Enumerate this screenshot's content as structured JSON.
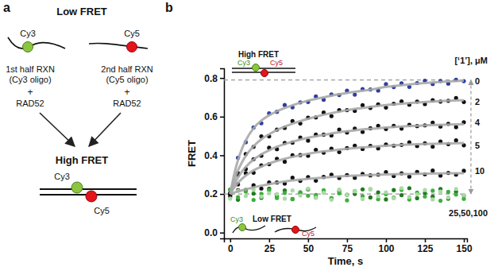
{
  "diagram": {
    "panel_label": "a",
    "top_title": "Low FRET",
    "bottom_title": "High FRET",
    "left": {
      "dye": "Cy3",
      "lines": [
        "1st half RXN",
        "(Cy3 oligo)"
      ],
      "plus": "+",
      "protein": "RAD52"
    },
    "right": {
      "dye": "Cy5",
      "lines": [
        "2nd half RXN",
        "(Cy5 oligo)"
      ],
      "plus": "+",
      "protein": "RAD52"
    },
    "duplex": {
      "dye_left": "Cy3",
      "dye_right": "Cy5"
    }
  },
  "chart_data": {
    "type": "scatter",
    "x_label": "Time, s",
    "y_label": "FRET",
    "xlim": [
      -4,
      152
    ],
    "ylim": [
      -0.03,
      0.85
    ],
    "xticks": [
      0,
      25,
      50,
      75,
      100,
      125,
      150
    ],
    "yticks": [
      {
        "value": 0,
        "label": "0.0"
      },
      {
        "value": 0.2,
        "label": "0.2"
      },
      {
        "value": 0.4,
        "label": "0.4"
      },
      {
        "value": 0.6,
        "label": "0.6"
      },
      {
        "value": 0.8,
        "label": "0.8"
      }
    ],
    "grid": false,
    "reference_lines": [
      0.79,
      0.2
    ],
    "annotations": {
      "panel_label": "b",
      "concentration_header": "[‘1’], μM",
      "inhibited_label": "25,50,100",
      "high_fret": {
        "title": "High FRET",
        "dye_left": "Cy3",
        "dye_right": "Cy5"
      },
      "low_fret": {
        "title": "Low FRET",
        "dye_left": "Cy3",
        "dye_right": "Cy5"
      }
    },
    "x": [
      0,
      5,
      10,
      15,
      20,
      25,
      30,
      35,
      40,
      45,
      50,
      55,
      60,
      65,
      70,
      75,
      80,
      85,
      90,
      95,
      100,
      105,
      110,
      115,
      120,
      125,
      130,
      135,
      140,
      145,
      150
    ],
    "series": [
      {
        "name": "0",
        "type": "scatter",
        "marker": "circle",
        "color": "#2d3fa0",
        "values": [
          0.2,
          0.387,
          0.468,
          0.544,
          0.566,
          0.617,
          0.625,
          0.66,
          0.648,
          0.674,
          0.676,
          0.705,
          0.688,
          0.715,
          0.712,
          0.734,
          0.714,
          0.743,
          0.741,
          0.735,
          0.768,
          0.753,
          0.772,
          0.754,
          0.774,
          0.786,
          0.769,
          0.785,
          0.771,
          0.791,
          0.784
        ]
      },
      {
        "name": "2",
        "type": "scatter",
        "marker": "circle",
        "color": "#111111",
        "values": [
          0.204,
          0.308,
          0.407,
          0.444,
          0.498,
          0.498,
          0.533,
          0.542,
          0.577,
          0.565,
          0.595,
          0.596,
          0.621,
          0.603,
          0.634,
          0.634,
          0.63,
          0.659,
          0.645,
          0.664,
          0.647,
          0.667,
          0.679,
          0.662,
          0.678,
          0.665,
          0.685,
          0.678,
          0.682,
          0.696,
          0.676
        ]
      },
      {
        "name": "4",
        "type": "scatter",
        "marker": "circle",
        "color": "#111111",
        "values": [
          0.197,
          0.3,
          0.329,
          0.38,
          0.398,
          0.439,
          0.432,
          0.464,
          0.466,
          0.492,
          0.476,
          0.507,
          0.507,
          0.503,
          0.533,
          0.518,
          0.538,
          0.521,
          0.54,
          0.553,
          0.536,
          0.552,
          0.538,
          0.558,
          0.551,
          0.555,
          0.569,
          0.549,
          0.563,
          0.546,
          0.571
        ]
      },
      {
        "name": "5",
        "type": "scatter",
        "marker": "circle",
        "color": "#111111",
        "values": [
          0.202,
          0.25,
          0.308,
          0.31,
          0.348,
          0.354,
          0.382,
          0.367,
          0.4,
          0.401,
          0.398,
          0.428,
          0.414,
          0.434,
          0.417,
          0.437,
          0.45,
          0.433,
          0.449,
          0.436,
          0.456,
          0.45,
          0.454,
          0.467,
          0.448,
          0.462,
          0.445,
          0.471,
          0.458,
          0.477,
          0.452
        ]
      },
      {
        "name": "10",
        "type": "scatter",
        "marker": "circle",
        "color": "#111111",
        "values": [
          0.188,
          0.219,
          0.22,
          0.245,
          0.228,
          0.259,
          0.259,
          0.254,
          0.284,
          0.268,
          0.287,
          0.269,
          0.288,
          0.3,
          0.283,
          0.298,
          0.284,
          0.304,
          0.296,
          0.3,
          0.313,
          0.293,
          0.307,
          0.29,
          0.314,
          0.302,
          0.321,
          0.295,
          0.309,
          0.3,
          0.32
        ]
      },
      {
        "type": "scatter",
        "marker": "circle",
        "color": "#1f7a1f",
        "values": [
          0.222,
          0.17,
          0.216,
          0.202,
          0.18,
          0.228,
          0.188,
          0.218,
          0.174,
          0.206,
          0.224,
          0.184,
          0.21,
          0.178,
          0.214,
          0.196,
          0.2,
          0.224,
          0.182,
          0.208,
          0.172,
          0.22,
          0.194,
          0.23,
          0.178,
          0.204,
          0.186,
          0.226,
          0.176,
          0.212,
          0.192
        ]
      },
      {
        "type": "scatter",
        "marker": "circle",
        "color": "#3fae3f",
        "values": [
          0.223,
          0.183,
          0.213,
          0.169,
          0.201,
          0.219,
          0.179,
          0.205,
          0.173,
          0.209,
          0.191,
          0.195,
          0.219,
          0.177,
          0.203,
          0.167,
          0.215,
          0.189,
          0.225,
          0.173,
          0.199,
          0.181,
          0.221,
          0.171,
          0.207,
          0.187,
          0.217,
          0.165,
          0.211,
          0.197,
          0.175
        ]
      },
      {
        "type": "scatter",
        "marker": "circle",
        "color": "#a9dba2",
        "values": [
          0.176,
          0.216,
          0.19,
          0.222,
          0.186,
          0.204,
          0.2,
          0.176,
          0.218,
          0.192,
          0.228,
          0.18,
          0.206,
          0.17,
          0.222,
          0.196,
          0.214,
          0.174,
          0.224,
          0.188,
          0.208,
          0.178,
          0.23,
          0.184,
          0.198,
          0.22,
          0.172,
          0.212,
          0.182,
          0.226,
          0.194
        ]
      },
      {
        "type": "line",
        "line_style": "solid",
        "color": "#a8a8a8",
        "x": [
          0,
          2.5,
          5,
          7.5,
          10,
          15,
          20,
          25,
          30,
          40,
          50,
          60,
          70,
          80,
          90,
          100,
          110,
          120,
          130,
          140,
          150
        ],
        "values": [
          0.2,
          0.3,
          0.375,
          0.433,
          0.477,
          0.54,
          0.58,
          0.607,
          0.628,
          0.659,
          0.683,
          0.7,
          0.716,
          0.729,
          0.74,
          0.754,
          0.763,
          0.771,
          0.777,
          0.782,
          0.786
        ]
      },
      {
        "type": "line",
        "line_style": "solid",
        "color": "#a8a8a8",
        "x": [
          0,
          2.5,
          5,
          7.5,
          10,
          15,
          20,
          25,
          30,
          40,
          50,
          60,
          70,
          80,
          90,
          100,
          110,
          120,
          130,
          140,
          150
        ],
        "values": [
          0.2,
          0.268,
          0.322,
          0.363,
          0.397,
          0.447,
          0.483,
          0.509,
          0.531,
          0.564,
          0.589,
          0.61,
          0.626,
          0.64,
          0.651,
          0.66,
          0.667,
          0.673,
          0.678,
          0.682,
          0.685
        ]
      },
      {
        "type": "line",
        "line_style": "solid",
        "color": "#a8a8a8",
        "x": [
          0,
          2.5,
          5,
          7.5,
          10,
          15,
          20,
          25,
          30,
          40,
          50,
          60,
          70,
          80,
          90,
          100,
          110,
          120,
          130,
          140,
          150
        ],
        "values": [
          0.2,
          0.248,
          0.285,
          0.316,
          0.34,
          0.378,
          0.405,
          0.426,
          0.444,
          0.47,
          0.491,
          0.506,
          0.519,
          0.529,
          0.537,
          0.544,
          0.549,
          0.553,
          0.557,
          0.559,
          0.561
        ]
      },
      {
        "type": "line",
        "line_style": "solid",
        "color": "#a8a8a8",
        "x": [
          0,
          2.5,
          5,
          7.5,
          10,
          15,
          20,
          25,
          30,
          40,
          50,
          60,
          70,
          80,
          90,
          100,
          110,
          120,
          130,
          140,
          150
        ],
        "values": [
          0.2,
          0.232,
          0.257,
          0.278,
          0.295,
          0.322,
          0.342,
          0.358,
          0.371,
          0.392,
          0.408,
          0.42,
          0.43,
          0.438,
          0.444,
          0.449,
          0.454,
          0.457,
          0.459,
          0.461,
          0.463
        ]
      },
      {
        "type": "line",
        "line_style": "solid",
        "color": "#a8a8a8",
        "x": [
          0,
          2.5,
          5,
          7.5,
          10,
          15,
          20,
          25,
          30,
          40,
          50,
          60,
          70,
          80,
          90,
          100,
          110,
          120,
          130,
          140,
          150
        ],
        "values": [
          0.2,
          0.207,
          0.213,
          0.219,
          0.224,
          0.234,
          0.243,
          0.251,
          0.258,
          0.27,
          0.278,
          0.285,
          0.291,
          0.295,
          0.298,
          0.301,
          0.303,
          0.304,
          0.306,
          0.307,
          0.307
        ]
      }
    ]
  }
}
